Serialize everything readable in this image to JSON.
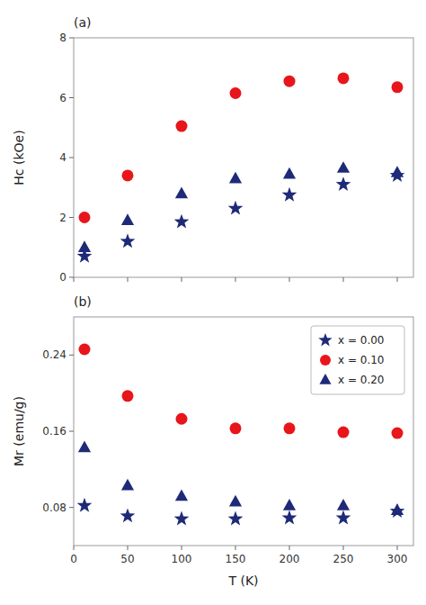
{
  "chart_data": [
    {
      "type": "scatter",
      "annotations": [
        "(a)"
      ],
      "ylabel": "Hc (kOe)",
      "x": [
        10,
        50,
        100,
        150,
        200,
        250,
        300
      ],
      "xlim": [
        0,
        315
      ],
      "xticks": [
        0,
        50,
        100,
        150,
        200,
        250,
        300
      ],
      "ylim": [
        0,
        8
      ],
      "yticks": [
        0,
        2,
        4,
        6,
        8
      ],
      "tick_labels": "y",
      "grid": false,
      "series": [
        {
          "color": "#1e2a78",
          "marker": "star",
          "values": [
            0.7,
            1.2,
            1.85,
            2.3,
            2.75,
            3.1,
            3.4
          ]
        },
        {
          "color": "#e8151a",
          "marker": "circle",
          "values": [
            2.0,
            3.4,
            5.05,
            6.15,
            6.55,
            6.65,
            6.35
          ]
        },
        {
          "color": "#1e2a78",
          "marker": "triangle",
          "values": [
            1.0,
            1.9,
            2.8,
            3.3,
            3.45,
            3.65,
            3.5
          ]
        }
      ]
    },
    {
      "type": "scatter",
      "annotations": [
        "(b)"
      ],
      "xlabel": "T (K)",
      "ylabel": "Mr (emu/g)",
      "x": [
        10,
        50,
        100,
        150,
        200,
        250,
        300
      ],
      "xlim": [
        0,
        315
      ],
      "xticks": [
        0,
        50,
        100,
        150,
        200,
        250,
        300
      ],
      "ylim": [
        0.04,
        0.28
      ],
      "yticks": [
        0.08,
        0.16,
        0.24
      ],
      "grid": false,
      "legend": "upper right",
      "series": [
        {
          "name": "x = 0.00",
          "color": "#1e2a78",
          "marker": "star",
          "values": [
            0.082,
            0.071,
            0.068,
            0.068,
            0.069,
            0.069,
            0.076
          ]
        },
        {
          "name": "x = 0.10",
          "color": "#e8151a",
          "marker": "circle",
          "values": [
            0.246,
            0.197,
            0.173,
            0.163,
            0.163,
            0.159,
            0.158
          ]
        },
        {
          "name": "x = 0.20",
          "color": "#1e2a78",
          "marker": "triangle",
          "values": [
            0.143,
            0.103,
            0.092,
            0.086,
            0.082,
            0.082,
            0.077
          ]
        }
      ]
    }
  ]
}
